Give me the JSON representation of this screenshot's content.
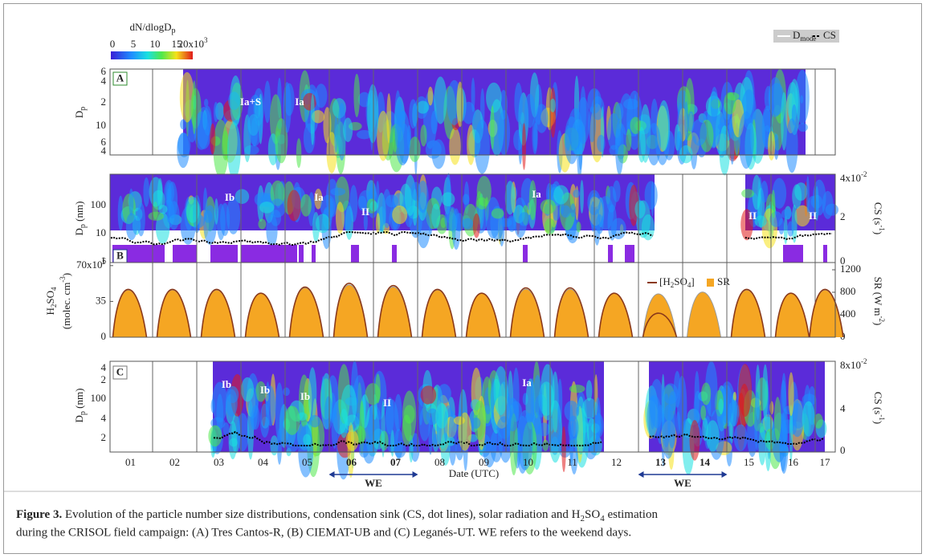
{
  "colorbar": {
    "title": "dN/dlogD",
    "title_sub": "p",
    "ticks": [
      "0",
      "5",
      "10",
      "15",
      "20x10"
    ],
    "last_sup": "3"
  },
  "legend": {
    "dmode": "D",
    "dmode_sub": "mode",
    "cs": "CS"
  },
  "panel_a": {
    "label": "A",
    "ylabel": "D",
    "ylabel_sub": "p",
    "ticks": [
      "6",
      "4",
      "2",
      "10",
      "6",
      "4"
    ],
    "annotations": [
      "Ia+S",
      "Ia"
    ]
  },
  "panel_b": {
    "label": "B",
    "ylabel": "D",
    "ylabel_sub": "p",
    "ylabel_unit": " (nm)",
    "ticks": [
      "100",
      "10",
      "1"
    ],
    "right_label": "CS (s",
    "right_sup": "-1",
    "right_close": ")",
    "right_ticks": [
      "4x10",
      "2",
      "0"
    ],
    "right_first_sup": "-2",
    "annotations": [
      "Ib",
      "Ia",
      "II",
      "Ia",
      "II",
      "II"
    ]
  },
  "h2so4_chart": {
    "type": "area",
    "ylabel": "H",
    "ylabel_sub1": "2",
    "ylabel_mid": "SO",
    "ylabel_sub2": "4",
    "ylabel2": "(molec. cm",
    "ylabel2_sup": "-3",
    "ylabel2_close": ")",
    "y2label": "SR (W m",
    "y2label_sup": "-2",
    "y2label_close": ")",
    "ylim": [
      0,
      73
    ],
    "yticks": [
      0,
      35,
      {
        "value": 70,
        "label": "70x10",
        "sup": "6"
      }
    ],
    "y2lim": [
      0,
      1329
    ],
    "y2ticks": [
      0,
      400,
      800,
      1200
    ],
    "series": [
      {
        "name": "SR",
        "color": "#f5a623",
        "axis": "y2",
        "values": [
          1080,
          1080,
          1080,
          1000,
          1130,
          1200,
          1150,
          1080,
          1000,
          1100,
          1100,
          1000,
          985,
          1030,
          1080,
          1000,
          1080
        ]
      },
      {
        "name": "[H",
        "name_sub1": "2",
        "name_mid": "SO",
        "name_sub2": "4",
        "name_close": "]",
        "color": "#8b3a1a",
        "values": [
          60,
          60,
          60,
          55,
          63,
          68,
          65,
          60,
          55,
          62,
          62,
          55,
          29,
          null,
          60,
          55,
          60
        ]
      }
    ]
  },
  "panel_c": {
    "label": "C",
    "ylabel": "D",
    "ylabel_sub": "p",
    "ylabel_unit": " (nm)",
    "ticks": [
      "4",
      "2",
      "100",
      "4",
      "2"
    ],
    "right_label": "CS (s",
    "right_sup": "-1",
    "right_close": ")",
    "right_ticks": [
      "8x10",
      "4",
      "0"
    ],
    "right_first_sup": "-2",
    "annotations": [
      "Ib",
      "Ib",
      "Ib",
      "II",
      "Ia"
    ]
  },
  "x_axis": {
    "days": [
      "01",
      "02",
      "03",
      "04",
      "05",
      "06",
      "07",
      "08",
      "09",
      "10",
      "11",
      "12",
      "13",
      "14",
      "15",
      "16",
      "17"
    ],
    "label": "Date (UTC)",
    "weekends": [
      {
        "label": "WE",
        "days": [
          "06",
          "07"
        ]
      },
      {
        "label": "WE",
        "days": [
          "13",
          "14"
        ]
      }
    ]
  },
  "caption": {
    "label": "Figure 3.",
    "line1": " Evolution of the particle number size distributions, condensation sink (CS, dot lines), solar radiation and H",
    "sub1": "2",
    "mid": "SO",
    "sub2": "4",
    "end": " estimation",
    "line2": "during the CRISOL field campaign: (A) Tres Cantos-R, (B) CIEMAT-UB and (C) Leganés-UT. WE refers to the weekend days."
  }
}
